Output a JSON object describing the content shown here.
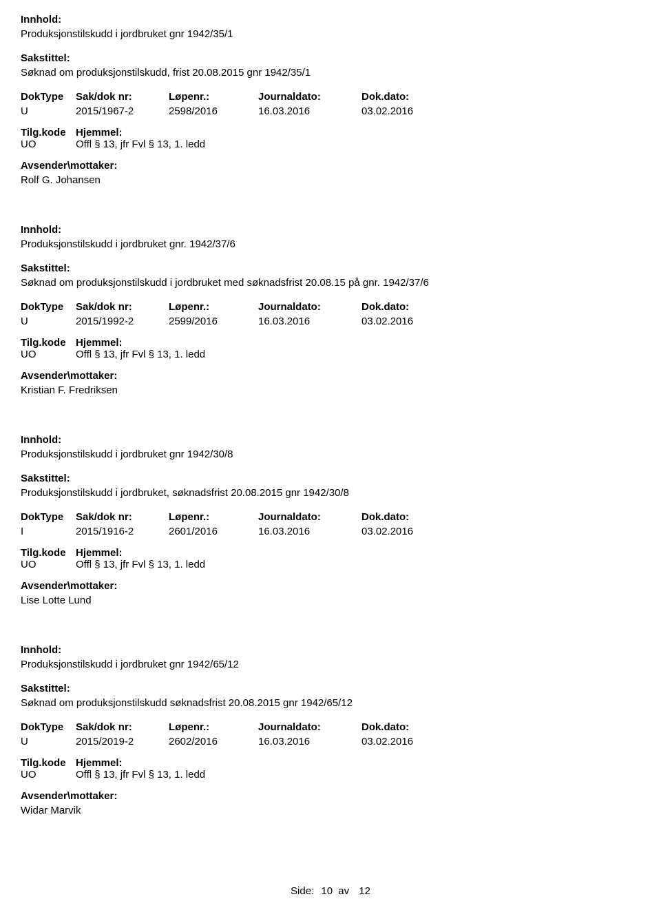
{
  "labels": {
    "innhold": "Innhold:",
    "sakstittel": "Sakstittel:",
    "doktype": "DokType",
    "sakdok": "Sak/dok nr:",
    "lopenr": "Løpenr.:",
    "journaldato": "Journaldato:",
    "dokdato": "Dok.dato:",
    "tilgkode": "Tilg.kode",
    "hjemmel": "Hjemmel:",
    "avsender": "Avsender\\mottaker:"
  },
  "records": [
    {
      "innhold": "Produksjonstilskudd i jordbruket gnr 1942/35/1",
      "sakstittel": "Søknad om produksjonstilskudd, frist 20.08.2015 gnr 1942/35/1",
      "doktype": "U",
      "sakdok": "2015/1967-2",
      "lopenr": "2598/2016",
      "journaldato": "16.03.2016",
      "dokdato": "03.02.2016",
      "tilgkode": "UO",
      "hjemmel": "Offl § 13, jfr Fvl § 13, 1. ledd",
      "avsender": "Rolf G. Johansen"
    },
    {
      "innhold": "Produksjonstilskudd i jordbruket gnr. 1942/37/6",
      "sakstittel": "Søknad om produksjonstilskudd i jordbruket med søknadsfrist 20.08.15 på gnr. 1942/37/6",
      "doktype": "U",
      "sakdok": "2015/1992-2",
      "lopenr": "2599/2016",
      "journaldato": "16.03.2016",
      "dokdato": "03.02.2016",
      "tilgkode": "UO",
      "hjemmel": "Offl § 13, jfr Fvl § 13, 1. ledd",
      "avsender": "Kristian F. Fredriksen"
    },
    {
      "innhold": "Produksjonstilskudd i jordbruket gnr 1942/30/8",
      "sakstittel": "Produksjonstilskudd i jordbruket, søknadsfrist 20.08.2015 gnr 1942/30/8",
      "doktype": "I",
      "sakdok": "2015/1916-2",
      "lopenr": "2601/2016",
      "journaldato": "16.03.2016",
      "dokdato": "03.02.2016",
      "tilgkode": "UO",
      "hjemmel": "Offl § 13, jfr Fvl § 13, 1. ledd",
      "avsender": "Lise Lotte Lund"
    },
    {
      "innhold": "Produksjonstilskudd i jordbruket gnr 1942/65/12",
      "sakstittel": "Søknad om produksjonstilskudd søknadsfrist 20.08.2015 gnr 1942/65/12",
      "doktype": "U",
      "sakdok": "2015/2019-2",
      "lopenr": "2602/2016",
      "journaldato": "16.03.2016",
      "dokdato": "03.02.2016",
      "tilgkode": "UO",
      "hjemmel": "Offl § 13, jfr Fvl § 13, 1. ledd",
      "avsender": "Widar Marvik"
    }
  ],
  "footer": {
    "side": "Side:",
    "page": "10",
    "av": "av",
    "total": "12"
  }
}
